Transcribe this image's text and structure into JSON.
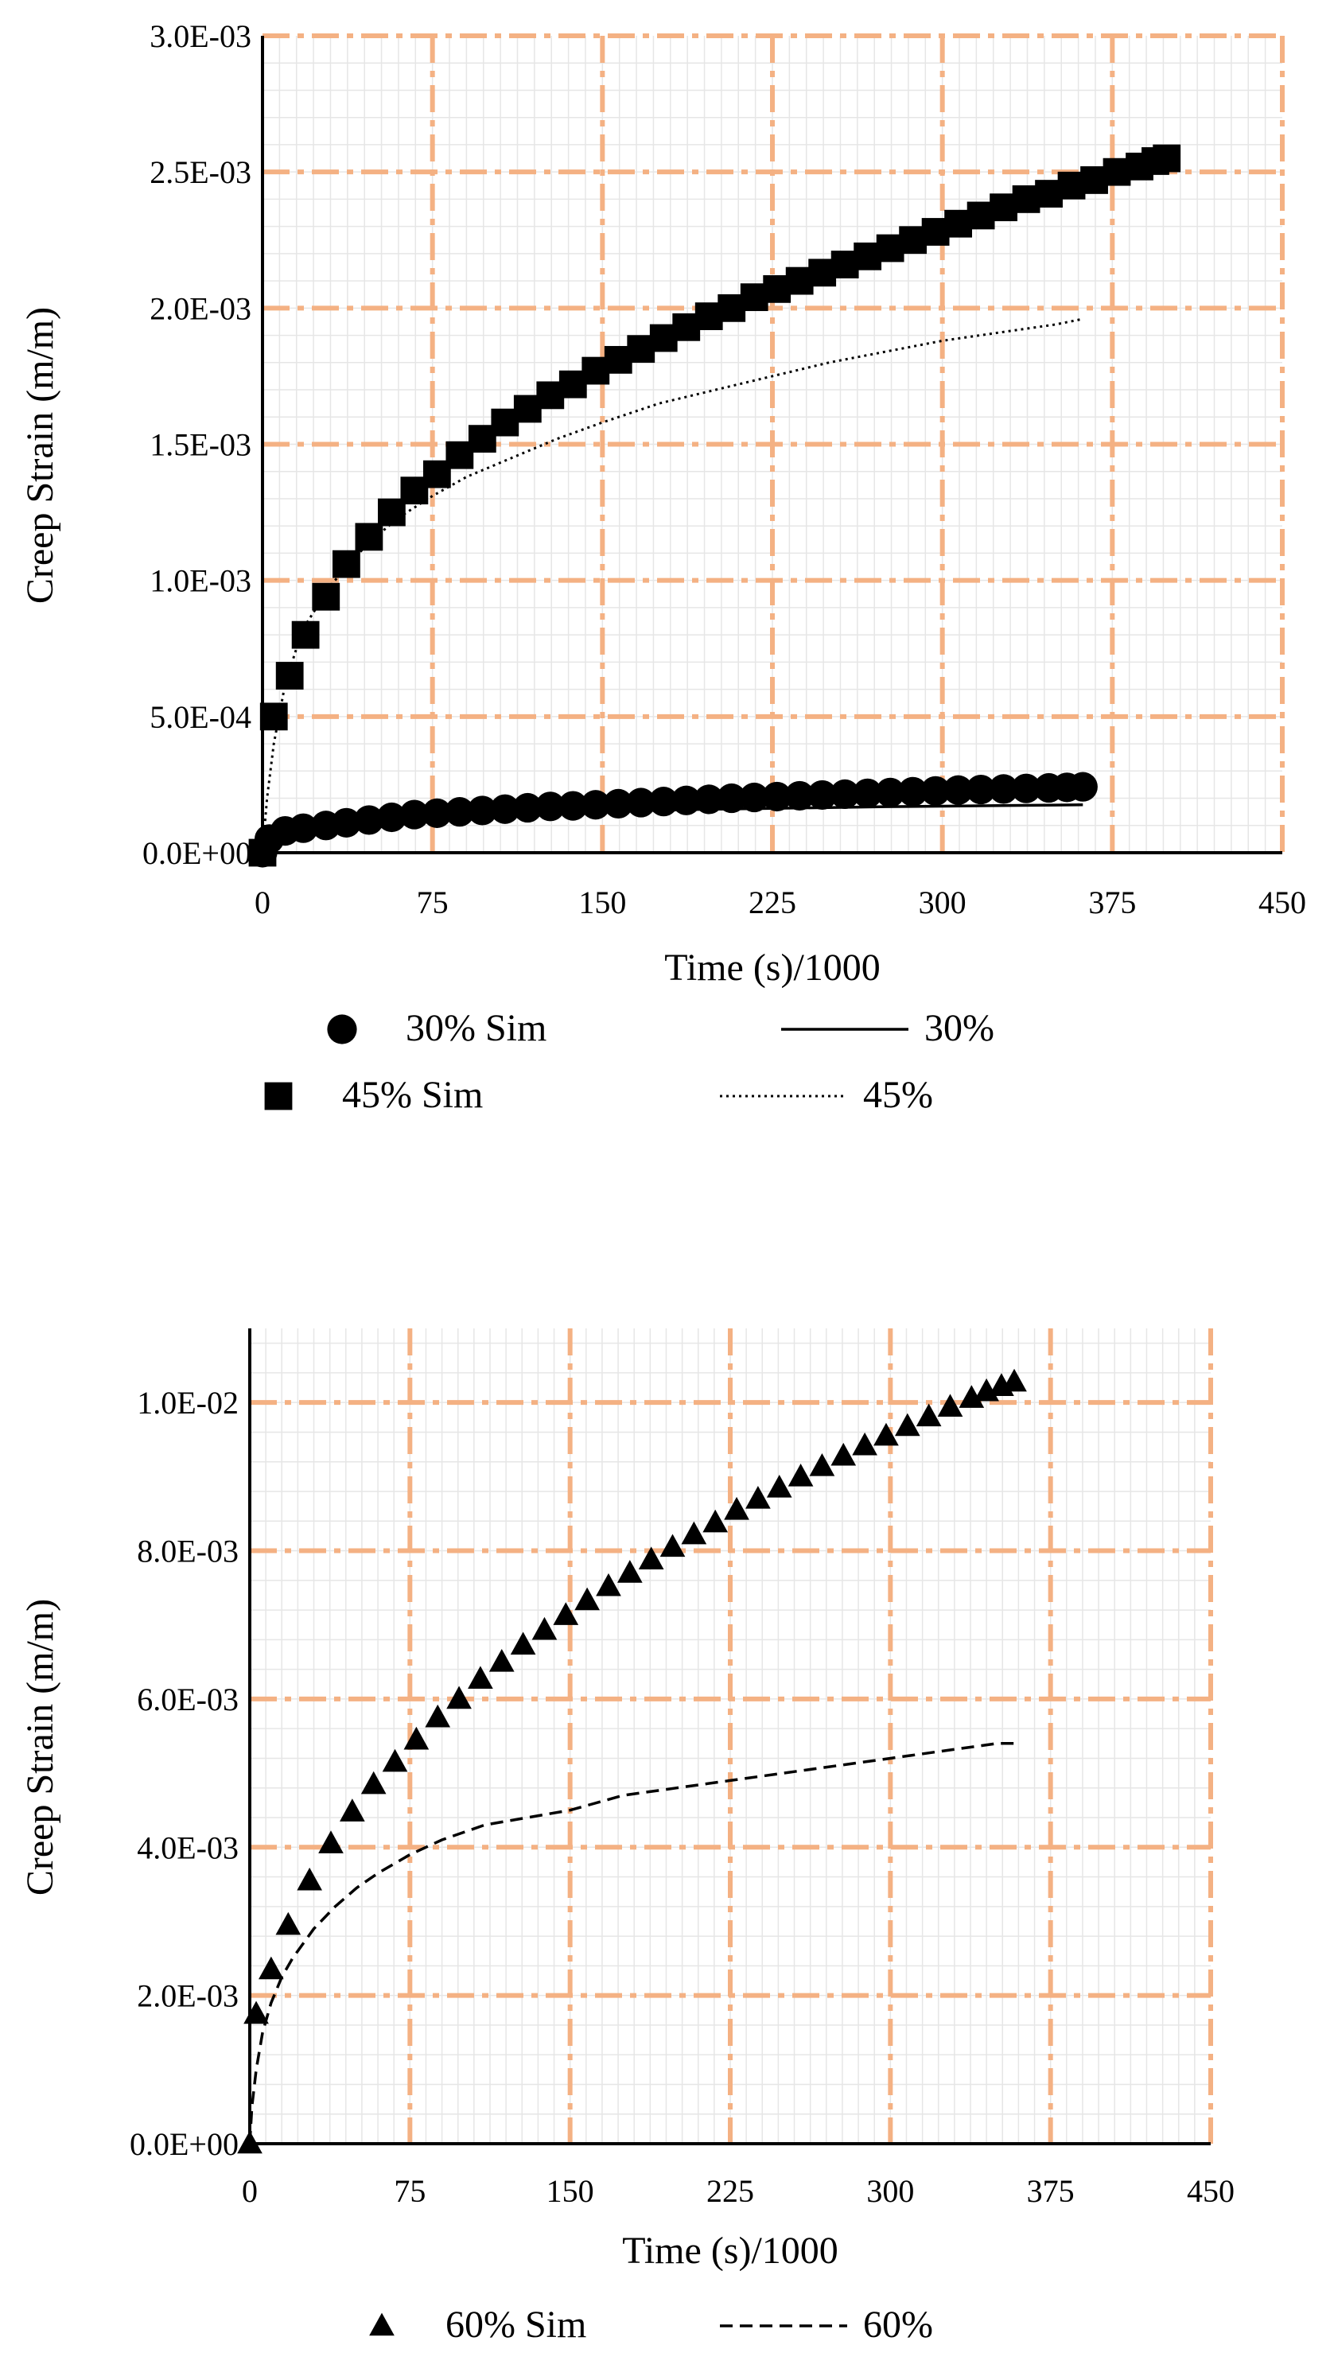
{
  "chart_data": [
    {
      "type": "scatter",
      "xlabel": "Time (s)/1000",
      "ylabel": "Creep Strain (m/m)",
      "xlim": [
        0,
        450
      ],
      "ylim": [
        0,
        0.003
      ],
      "x_ticks": [
        0,
        75,
        150,
        225,
        300,
        375,
        450
      ],
      "x_tick_labels": [
        "0",
        "75",
        "150",
        "225",
        "300",
        "375",
        "450"
      ],
      "y_ticks": [
        0,
        0.0005,
        0.001,
        0.0015,
        0.002,
        0.0025,
        0.003
      ],
      "y_tick_labels": [
        "0.0E+00",
        "5.0E-04",
        "1.0E-03",
        "1.5E-03",
        "2.0E-03",
        "2.5E-03",
        "3.0E-03"
      ],
      "grid": true,
      "legend_position": "bottom",
      "series": [
        {
          "name": "30% Sim",
          "kind": "marker",
          "marker": "circle",
          "x": [
            0,
            3,
            10,
            18,
            28,
            37,
            47,
            57,
            67,
            77,
            87,
            97,
            107,
            117,
            127,
            137,
            147,
            157,
            167,
            177,
            187,
            197,
            207,
            217,
            227,
            237,
            247,
            257,
            267,
            277,
            287,
            297,
            307,
            317,
            327,
            337,
            347,
            355,
            362
          ],
          "y": [
            0,
            5e-05,
            8e-05,
            9e-05,
            0.0001,
            0.00011,
            0.00012,
            0.00013,
            0.00014,
            0.000145,
            0.00015,
            0.000155,
            0.00016,
            0.000165,
            0.00017,
            0.000172,
            0.000176,
            0.00018,
            0.000184,
            0.000188,
            0.000192,
            0.000196,
            0.0002,
            0.000203,
            0.000206,
            0.000209,
            0.000212,
            0.000215,
            0.000218,
            0.000221,
            0.000224,
            0.000227,
            0.00023,
            0.000232,
            0.000234,
            0.000236,
            0.000238,
            0.00024,
            0.000242
          ]
        },
        {
          "name": "45% Sim",
          "kind": "marker",
          "marker": "square",
          "x": [
            0,
            5,
            12,
            19,
            28,
            37,
            47,
            57,
            67,
            77,
            87,
            97,
            107,
            117,
            127,
            137,
            147,
            157,
            167,
            177,
            187,
            197,
            207,
            217,
            227,
            237,
            247,
            257,
            267,
            277,
            287,
            297,
            307,
            317,
            327,
            337,
            347,
            357,
            367,
            377,
            387,
            394,
            399
          ],
          "y": [
            0,
            0.0005,
            0.00065,
            0.0008,
            0.00094,
            0.00106,
            0.00116,
            0.00125,
            0.00133,
            0.00139,
            0.00146,
            0.00152,
            0.00158,
            0.00163,
            0.00168,
            0.00172,
            0.00177,
            0.00181,
            0.00185,
            0.00189,
            0.00193,
            0.00197,
            0.002,
            0.00204,
            0.00207,
            0.0021,
            0.00213,
            0.00216,
            0.00219,
            0.00222,
            0.00225,
            0.00228,
            0.00231,
            0.00234,
            0.00237,
            0.0024,
            0.00242,
            0.00245,
            0.00247,
            0.0025,
            0.00252,
            0.00254,
            0.00255
          ]
        },
        {
          "name": "30%",
          "kind": "line",
          "dash": "solid",
          "x": [
            0,
            2,
            5,
            10,
            20,
            35,
            50,
            75,
            100,
            125,
            150,
            175,
            200,
            225,
            250,
            275,
            300,
            325,
            350,
            362
          ],
          "y": [
            0,
            4e-05,
            7e-05,
            9e-05,
            0.0001,
            0.000112,
            0.00012,
            0.000132,
            0.00014,
            0.000146,
            0.000151,
            0.000156,
            0.00016,
            0.000163,
            0.000166,
            0.000169,
            0.000171,
            0.000173,
            0.000175,
            0.000176
          ]
        },
        {
          "name": "45%",
          "kind": "line",
          "dash": "dotted",
          "x": [
            0,
            2,
            5,
            10,
            15,
            20,
            30,
            40,
            50,
            60,
            75,
            90,
            110,
            130,
            150,
            175,
            200,
            225,
            250,
            275,
            300,
            325,
            350,
            362
          ],
          "y": [
            0,
            0.0002,
            0.0004,
            0.00062,
            0.00075,
            0.00085,
            0.00098,
            0.00108,
            0.00116,
            0.00123,
            0.00131,
            0.00138,
            0.00145,
            0.00152,
            0.00158,
            0.00165,
            0.0017,
            0.00175,
            0.0018,
            0.00184,
            0.00188,
            0.00191,
            0.00194,
            0.00196
          ]
        }
      ]
    },
    {
      "type": "scatter",
      "xlabel": "Time (s)/1000",
      "ylabel": "Creep Strain (m/m)",
      "xlim": [
        0,
        450
      ],
      "ylim": [
        0,
        0.011
      ],
      "x_ticks": [
        0,
        75,
        150,
        225,
        300,
        375,
        450
      ],
      "x_tick_labels": [
        "0",
        "75",
        "150",
        "225",
        "300",
        "375",
        "450"
      ],
      "y_ticks": [
        0,
        0.002,
        0.004,
        0.006,
        0.008,
        0.01
      ],
      "y_tick_labels": [
        "0.0E+00",
        "2.0E-03",
        "4.0E-03",
        "6.0E-03",
        "8.0E-03",
        "1.0E-02"
      ],
      "grid": true,
      "legend_position": "bottom",
      "series": [
        {
          "name": "60% Sim",
          "kind": "marker",
          "marker": "triangle",
          "x": [
            0,
            3,
            10,
            18,
            28,
            38,
            48,
            58,
            68,
            78,
            88,
            98,
            108,
            118,
            128,
            138,
            148,
            158,
            168,
            178,
            188,
            198,
            208,
            218,
            228,
            238,
            248,
            258,
            268,
            278,
            288,
            298,
            308,
            318,
            328,
            338,
            345,
            352,
            358
          ],
          "y": [
            0,
            0.00175,
            0.00235,
            0.00295,
            0.00355,
            0.00405,
            0.00448,
            0.00485,
            0.00515,
            0.00545,
            0.00575,
            0.006,
            0.00627,
            0.0065,
            0.00673,
            0.00693,
            0.00713,
            0.00733,
            0.00752,
            0.0077,
            0.00788,
            0.00805,
            0.00822,
            0.00838,
            0.00855,
            0.0087,
            0.00885,
            0.009,
            0.00914,
            0.00928,
            0.00942,
            0.00955,
            0.00968,
            0.00981,
            0.00994,
            0.01006,
            0.01015,
            0.01022,
            0.01028
          ]
        },
        {
          "name": "60%",
          "kind": "line",
          "dash": "dashed",
          "x": [
            0,
            1,
            3,
            6,
            10,
            15,
            20,
            30,
            40,
            50,
            60,
            75,
            90,
            110,
            130,
            150,
            175,
            200,
            225,
            250,
            275,
            300,
            325,
            350,
            360
          ],
          "y": [
            0,
            0.0005,
            0.001,
            0.0015,
            0.0019,
            0.00225,
            0.0025,
            0.0029,
            0.0032,
            0.00345,
            0.00365,
            0.0039,
            0.0041,
            0.0043,
            0.0044,
            0.0045,
            0.0047,
            0.0048,
            0.0049,
            0.005,
            0.0051,
            0.0052,
            0.0053,
            0.0054,
            0.0054
          ]
        }
      ]
    }
  ]
}
